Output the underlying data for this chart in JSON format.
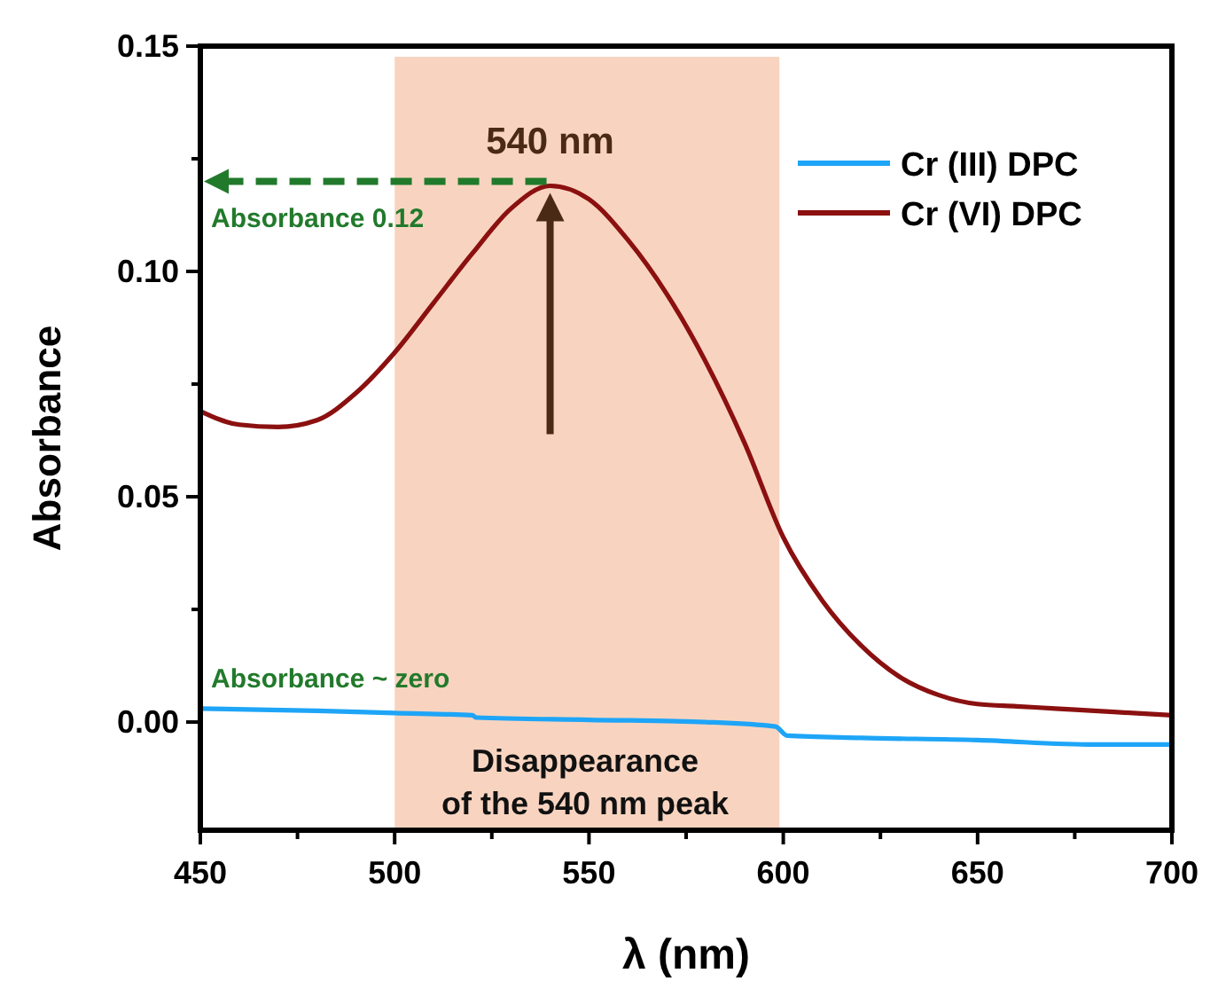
{
  "chart_data": {
    "type": "line",
    "xlabel": "λ (nm)",
    "ylabel": "Absorbance",
    "xlim": [
      450,
      700
    ],
    "xticks": [
      450,
      {
        "value": 475,
        "label": null
      },
      500,
      {
        "value": 525,
        "label": null
      },
      550,
      {
        "value": 575,
        "label": null
      },
      600,
      {
        "value": 625,
        "label": null
      },
      650,
      {
        "value": 675,
        "label": null
      },
      700
    ],
    "ylim": [
      -0.024,
      0.15
    ],
    "yticks": [
      {
        "value": 0,
        "label": "0.00"
      },
      {
        "value": 0.025,
        "label": null
      },
      0.05,
      {
        "value": 0.075,
        "label": null
      },
      {
        "value": 0.1,
        "label": "0.10"
      },
      {
        "value": 0.125,
        "label": null
      },
      0.15
    ],
    "series": [
      {
        "name": "Cr (III) DPC",
        "color": "#1ea5f7",
        "x": [
          450,
          480,
          500,
          520,
          521,
          550,
          580,
          598,
          601,
          620,
          650,
          680,
          700
        ],
        "values": [
          0.003,
          0.0025,
          0.002,
          0.0015,
          0.001,
          0.0005,
          0,
          -0.001,
          -0.003,
          -0.0035,
          -0.004,
          -0.005,
          -0.005
        ]
      },
      {
        "name": "Cr (VI) DPC",
        "color": "#8b1010",
        "x": [
          450,
          460,
          470,
          480,
          490,
          500,
          510,
          520,
          530,
          540,
          550,
          560,
          570,
          580,
          590,
          600,
          610,
          620,
          630,
          640,
          650,
          660,
          670,
          680,
          690,
          700
        ],
        "values": [
          0.069,
          0.066,
          0.0655,
          0.067,
          0.073,
          0.082,
          0.093,
          0.104,
          0.114,
          0.119,
          0.116,
          0.107,
          0.095,
          0.08,
          0.062,
          0.041,
          0.027,
          0.017,
          0.01,
          0.006,
          0.004,
          0.0035,
          0.003,
          0.0025,
          0.002,
          0.0015
        ]
      }
    ],
    "bands": [
      {
        "axis": "x",
        "from": 500,
        "to": 599,
        "color": "#f7cfb9"
      }
    ],
    "annotations": [
      {
        "text": "540 nm",
        "x": 540,
        "y": 0.119
      },
      {
        "text": "Absorbance 0.12",
        "x": 540,
        "y": 0.12
      },
      {
        "text": "Absorbance ~ zero",
        "x": 450,
        "y": 0.003
      },
      {
        "text": "Disappearance\nof the 540 nm peak",
        "x": 549,
        "y": 0
      }
    ],
    "legend": "top right",
    "grid": false,
    "line_style": "solid"
  }
}
